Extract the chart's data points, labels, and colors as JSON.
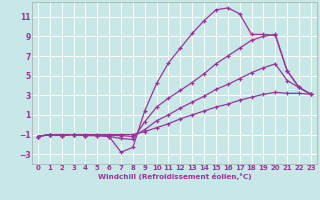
{
  "xlabel": "Windchill (Refroidissement éolien,°C)",
  "background_color": "#c8e8e8",
  "grid_color": "#ffffff",
  "line_color": "#993399",
  "xlim": [
    -0.5,
    23.5
  ],
  "ylim": [
    -4.0,
    12.5
  ],
  "xticks": [
    0,
    1,
    2,
    3,
    4,
    5,
    6,
    7,
    8,
    9,
    10,
    11,
    12,
    13,
    14,
    15,
    16,
    17,
    18,
    19,
    20,
    21,
    22,
    23
  ],
  "yticks": [
    -3,
    -1,
    1,
    3,
    5,
    7,
    9,
    11
  ],
  "lines": [
    {
      "x": [
        0,
        1,
        2,
        3,
        4,
        5,
        6,
        7,
        8,
        9,
        10,
        11,
        12,
        13,
        14,
        15,
        16,
        17,
        18,
        19,
        20,
        21,
        22,
        23
      ],
      "y": [
        -1.2,
        -1.0,
        -1.1,
        -1.0,
        -1.1,
        -1.1,
        -1.2,
        -2.8,
        -2.3,
        1.4,
        4.2,
        6.3,
        7.8,
        9.3,
        10.6,
        11.7,
        11.9,
        11.3,
        9.2,
        9.2,
        9.1,
        5.5,
        3.8,
        3.1
      ]
    },
    {
      "x": [
        0,
        1,
        2,
        3,
        4,
        5,
        6,
        7,
        8,
        9,
        10,
        11,
        12,
        13,
        14,
        15,
        16,
        17,
        18,
        19,
        20,
        21,
        22,
        23
      ],
      "y": [
        -1.2,
        -1.0,
        -1.1,
        -1.0,
        -1.1,
        -1.1,
        -1.2,
        -1.4,
        -1.5,
        0.3,
        1.8,
        2.7,
        3.5,
        4.3,
        5.2,
        6.2,
        7.0,
        7.8,
        8.6,
        9.0,
        9.2,
        5.5,
        3.8,
        3.1
      ]
    },
    {
      "x": [
        0,
        1,
        2,
        3,
        4,
        5,
        6,
        7,
        8,
        9,
        10,
        11,
        12,
        13,
        14,
        15,
        16,
        17,
        18,
        19,
        20,
        21,
        22,
        23
      ],
      "y": [
        -1.2,
        -1.0,
        -1.1,
        -1.0,
        -1.1,
        -1.0,
        -1.1,
        -1.1,
        -1.2,
        -0.5,
        0.4,
        1.0,
        1.7,
        2.3,
        2.9,
        3.6,
        4.1,
        4.7,
        5.3,
        5.8,
        6.2,
        4.5,
        3.8,
        3.1
      ]
    },
    {
      "x": [
        0,
        1,
        2,
        3,
        4,
        5,
        6,
        7,
        8,
        9,
        10,
        11,
        12,
        13,
        14,
        15,
        16,
        17,
        18,
        19,
        20,
        21,
        22,
        23
      ],
      "y": [
        -1.2,
        -1.0,
        -1.0,
        -1.0,
        -1.0,
        -1.0,
        -1.0,
        -1.0,
        -1.0,
        -0.7,
        -0.3,
        0.1,
        0.6,
        1.0,
        1.4,
        1.8,
        2.1,
        2.5,
        2.8,
        3.1,
        3.3,
        3.2,
        3.2,
        3.1
      ]
    }
  ]
}
